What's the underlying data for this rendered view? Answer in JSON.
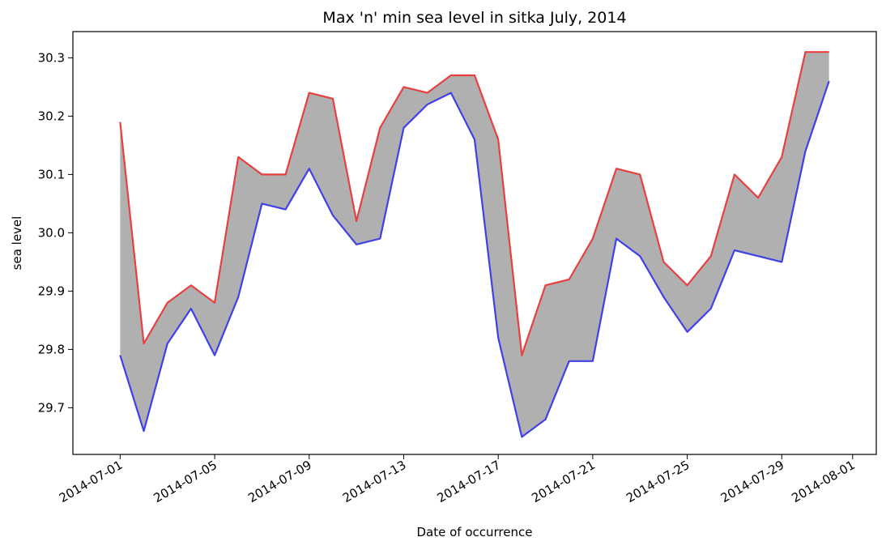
{
  "chart_data": {
    "type": "area",
    "title": "Max 'n' min sea level in sitka July, 2014",
    "xlabel": "Date of occurrence",
    "ylabel": "sea level",
    "x": [
      "2014-07-01",
      "2014-07-02",
      "2014-07-03",
      "2014-07-04",
      "2014-07-05",
      "2014-07-06",
      "2014-07-07",
      "2014-07-08",
      "2014-07-09",
      "2014-07-10",
      "2014-07-11",
      "2014-07-12",
      "2014-07-13",
      "2014-07-14",
      "2014-07-15",
      "2014-07-16",
      "2014-07-17",
      "2014-07-18",
      "2014-07-19",
      "2014-07-20",
      "2014-07-21",
      "2014-07-22",
      "2014-07-23",
      "2014-07-24",
      "2014-07-25",
      "2014-07-26",
      "2014-07-27",
      "2014-07-28",
      "2014-07-29",
      "2014-07-30",
      "2014-07-31"
    ],
    "series": [
      {
        "color": "#e84040",
        "values": [
          30.19,
          29.81,
          29.88,
          29.91,
          29.88,
          30.13,
          30.1,
          30.1,
          30.24,
          30.23,
          30.02,
          30.18,
          30.25,
          30.24,
          30.27,
          30.27,
          30.16,
          29.79,
          29.91,
          29.92,
          29.99,
          30.11,
          30.1,
          29.95,
          29.91,
          29.96,
          30.1,
          30.06,
          30.13,
          30.31,
          30.31
        ]
      },
      {
        "color": "#4040e8",
        "values": [
          29.79,
          29.66,
          29.81,
          29.87,
          29.79,
          29.89,
          30.05,
          30.04,
          30.11,
          30.03,
          29.98,
          29.99,
          30.18,
          30.22,
          30.24,
          30.16,
          29.82,
          29.65,
          29.68,
          29.78,
          29.78,
          29.99,
          29.96,
          29.89,
          29.83,
          29.87,
          29.97,
          29.96,
          29.95,
          30.14,
          30.26
        ]
      }
    ],
    "fill_between": {
      "color": "#b0b0b0"
    },
    "xlim": [
      "2014-06-29",
      "2014-08-02"
    ],
    "ylim": [
      29.62,
      30.345
    ],
    "x_ticks": [
      "2014-07-01",
      "2014-07-05",
      "2014-07-09",
      "2014-07-13",
      "2014-07-17",
      "2014-07-21",
      "2014-07-25",
      "2014-07-29",
      "2014-08-01"
    ],
    "y_ticks": [
      "29.7",
      "29.8",
      "29.9",
      "30.0",
      "30.1",
      "30.2",
      "30.3"
    ],
    "grid": false,
    "legend": "none"
  }
}
